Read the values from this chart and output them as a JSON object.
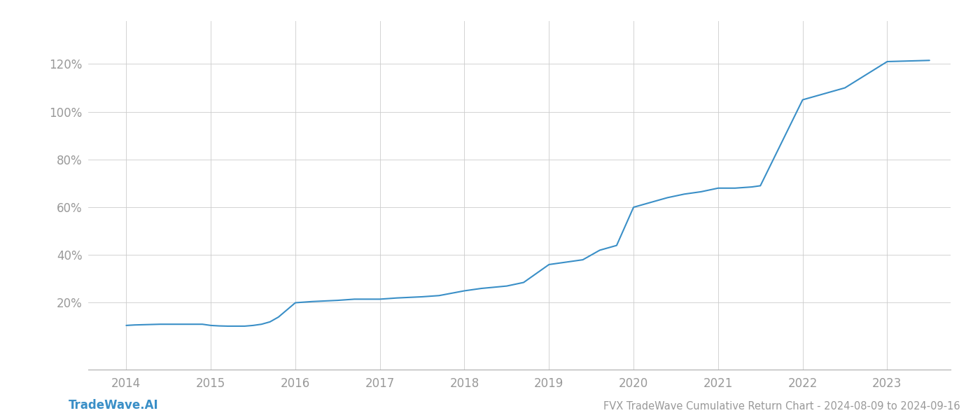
{
  "title": "FVX TradeWave Cumulative Return Chart - 2024-08-09 to 2024-09-16",
  "watermark": "TradeWave.AI",
  "line_color": "#3a8fc7",
  "background_color": "#ffffff",
  "grid_color": "#cccccc",
  "text_color": "#999999",
  "x_values": [
    2014.0,
    2014.1,
    2014.2,
    2014.3,
    2014.4,
    2014.5,
    2014.6,
    2014.7,
    2014.8,
    2014.9,
    2015.0,
    2015.1,
    2015.2,
    2015.3,
    2015.4,
    2015.5,
    2015.6,
    2015.7,
    2015.8,
    2016.0,
    2016.2,
    2016.5,
    2016.7,
    2017.0,
    2017.2,
    2017.5,
    2017.7,
    2018.0,
    2018.2,
    2018.5,
    2018.7,
    2019.0,
    2019.2,
    2019.4,
    2019.6,
    2019.8,
    2020.0,
    2020.2,
    2020.4,
    2020.6,
    2020.8,
    2021.0,
    2021.2,
    2021.4,
    2021.5,
    2022.0,
    2022.2,
    2022.5,
    2023.0,
    2023.5
  ],
  "y_values": [
    10.5,
    10.7,
    10.8,
    10.9,
    11.0,
    11.0,
    11.0,
    11.0,
    11.0,
    11.0,
    10.5,
    10.3,
    10.2,
    10.2,
    10.2,
    10.5,
    11.0,
    12.0,
    14.0,
    20.0,
    20.5,
    21.0,
    21.5,
    21.5,
    22.0,
    22.5,
    23.0,
    25.0,
    26.0,
    27.0,
    28.5,
    36.0,
    37.0,
    38.0,
    42.0,
    44.0,
    60.0,
    62.0,
    64.0,
    65.5,
    66.5,
    68.0,
    68.0,
    68.5,
    69.0,
    105.0,
    107.0,
    110.0,
    121.0,
    121.5
  ],
  "xlim": [
    2013.55,
    2023.75
  ],
  "ylim": [
    -8,
    138
  ],
  "yticks": [
    20,
    40,
    60,
    80,
    100,
    120
  ],
  "ytick_labels": [
    "20%",
    "40%",
    "60%",
    "80%",
    "100%",
    "120%"
  ],
  "xticks": [
    2014,
    2015,
    2016,
    2017,
    2018,
    2019,
    2020,
    2021,
    2022,
    2023
  ],
  "line_width": 1.5,
  "title_fontsize": 10.5,
  "tick_fontsize": 12,
  "watermark_fontsize": 12
}
